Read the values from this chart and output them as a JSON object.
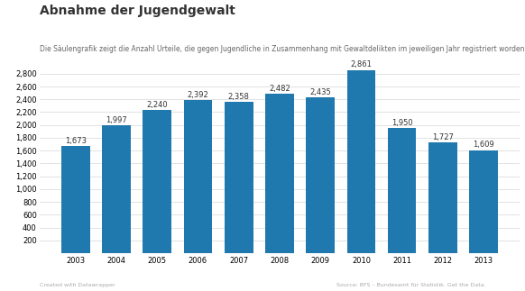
{
  "title": "Abnahme der Jugendgewalt",
  "subtitle": "Die Säulengrafik zeigt die Anzahl Urteile, die gegen Jugendliche in Zusammenhang mit Gewaltdelikten im jeweiligen Jahr registriert worden sind.",
  "years": [
    2003,
    2004,
    2005,
    2006,
    2007,
    2008,
    2009,
    2010,
    2011,
    2012,
    2013
  ],
  "values": [
    1673,
    1997,
    2240,
    2392,
    2358,
    2482,
    2435,
    2861,
    1950,
    1727,
    1609
  ],
  "bar_color": "#2079ae",
  "background_color": "#ffffff",
  "ylim_max": 2800,
  "yticks": [
    200,
    400,
    600,
    800,
    1000,
    1200,
    1400,
    1600,
    1800,
    2000,
    2200,
    2400,
    2600,
    2800
  ],
  "title_fontsize": 10,
  "subtitle_fontsize": 5.5,
  "label_fontsize": 6,
  "axis_fontsize": 6,
  "footer_left": "Created with Datawrapper",
  "footer_right": "Source: BFS – Bundesamt für Statistik. Get the Data.",
  "grid_color": "#dddddd",
  "text_color": "#333333",
  "footer_color": "#aaaaaa"
}
